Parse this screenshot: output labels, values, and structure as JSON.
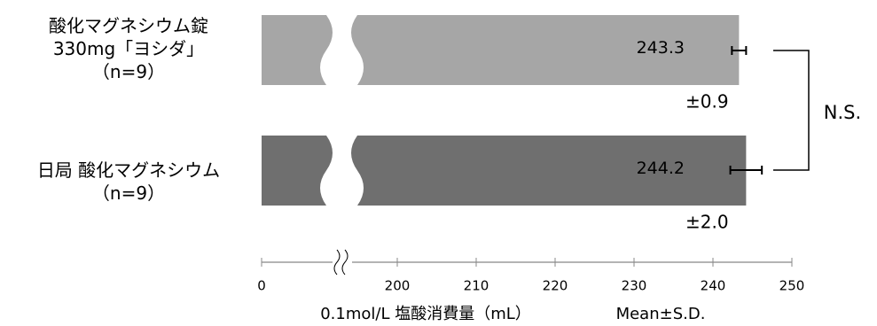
{
  "chart_data": {
    "type": "hbar",
    "categories": [
      "酸化マグネシウム錠\n330mg「ヨシダ」\n（n=9）",
      "日局 酸化マグネシウム\n（n=9）"
    ],
    "values": [
      243.3,
      244.2
    ],
    "errors": [
      0.9,
      2.0
    ],
    "error_labels": [
      "±0.9",
      "±2.0"
    ],
    "colors": [
      "#a6a6a6",
      "#6f6f6f"
    ],
    "xlim": [
      0,
      250
    ],
    "xticks": [
      0,
      200,
      210,
      220,
      230,
      240,
      250
    ],
    "x_break": true,
    "x_label": "0.1mol/L 塩酸消費量（mL）",
    "note": "Mean±S.D.",
    "annotation": "N.S."
  }
}
